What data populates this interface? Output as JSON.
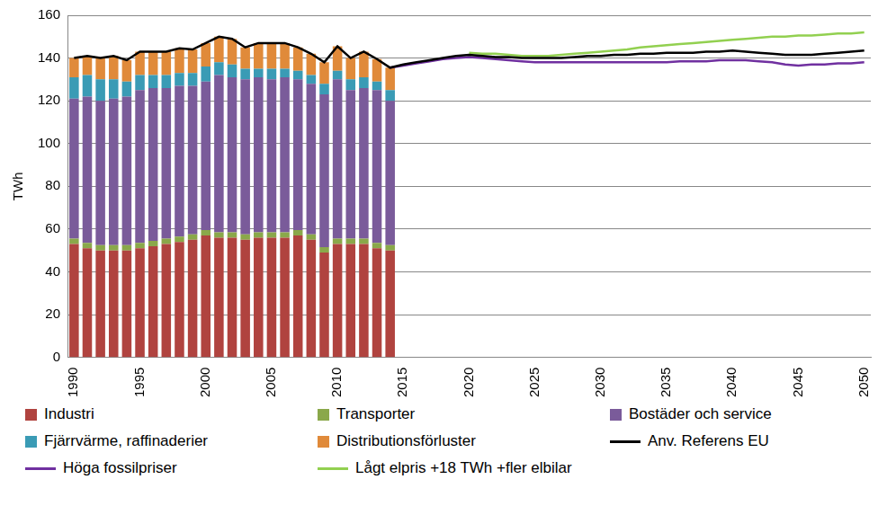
{
  "chart_data": {
    "type": "bar",
    "y_label": "TWh",
    "stacked": true,
    "grid": true,
    "ylim": [
      0,
      160
    ],
    "yticks": [
      0,
      20,
      40,
      60,
      80,
      100,
      120,
      140,
      160
    ],
    "categories": [
      "1990",
      null,
      null,
      null,
      null,
      "1995",
      null,
      null,
      null,
      null,
      "2000",
      null,
      null,
      null,
      null,
      "2005",
      null,
      null,
      null,
      null,
      "2010",
      null,
      null,
      null,
      null,
      "2015",
      null,
      null,
      null,
      null,
      "2020",
      null,
      null,
      null,
      null,
      "2025",
      null,
      null,
      null,
      null,
      "2030",
      null,
      null,
      null,
      null,
      "2035",
      null,
      null,
      null,
      null,
      "2040",
      null,
      null,
      null,
      null,
      "2045",
      null,
      null,
      null,
      null,
      "2050"
    ],
    "series": [
      {
        "name": "Industri",
        "type": "bar",
        "color": "#b0433f",
        "values": [
          53,
          51,
          50,
          50,
          50,
          51,
          52,
          53,
          54,
          55,
          57,
          56,
          56,
          55,
          56,
          56,
          56,
          57,
          55,
          49,
          53,
          53,
          53,
          51,
          50,
          null,
          null,
          null,
          null,
          null,
          null,
          null,
          null,
          null,
          null,
          null,
          null,
          null,
          null,
          null,
          null,
          null,
          null,
          null,
          null,
          null,
          null,
          null,
          null,
          null,
          null,
          null,
          null,
          null,
          null,
          null,
          null,
          null,
          null,
          null,
          null
        ]
      },
      {
        "name": "Transporter",
        "type": "bar",
        "color": "#8aa84a",
        "values": [
          2.5,
          2.5,
          2.5,
          2.5,
          2.5,
          2.5,
          2.5,
          2.5,
          2.5,
          2.5,
          2.5,
          2.5,
          2.5,
          2.5,
          2.5,
          2.5,
          2.5,
          2.5,
          2.5,
          2.5,
          2.5,
          2.5,
          2.5,
          2.5,
          2.5,
          null,
          null,
          null,
          null,
          null,
          null,
          null,
          null,
          null,
          null,
          null,
          null,
          null,
          null,
          null,
          null,
          null,
          null,
          null,
          null,
          null,
          null,
          null,
          null,
          null,
          null,
          null,
          null,
          null,
          null,
          null,
          null,
          null,
          null,
          null,
          null
        ]
      },
      {
        "name": "Bostäder och service",
        "type": "bar",
        "color": "#7a5b9a",
        "values": [
          65.5,
          68.5,
          67.5,
          68.5,
          69.5,
          71.5,
          71.5,
          70.5,
          70.5,
          69.5,
          69.5,
          73.5,
          72.5,
          72.5,
          72.5,
          71.5,
          72.5,
          70.5,
          70.5,
          71.5,
          74.5,
          69.5,
          70.5,
          71.5,
          67.5,
          null,
          null,
          null,
          null,
          null,
          null,
          null,
          null,
          null,
          null,
          null,
          null,
          null,
          null,
          null,
          null,
          null,
          null,
          null,
          null,
          null,
          null,
          null,
          null,
          null,
          null,
          null,
          null,
          null,
          null,
          null,
          null,
          null,
          null,
          null,
          null
        ]
      },
      {
        "name": "Fjärrvärme, raffinaderier",
        "type": "bar",
        "color": "#3a9bb5",
        "values": [
          10,
          10,
          10,
          9,
          7,
          7,
          6,
          6,
          6,
          6,
          7,
          6,
          6,
          5,
          4,
          5,
          4,
          4,
          4,
          5,
          4,
          5,
          5,
          4,
          5,
          null,
          null,
          null,
          null,
          null,
          null,
          null,
          null,
          null,
          null,
          null,
          null,
          null,
          null,
          null,
          null,
          null,
          null,
          null,
          null,
          null,
          null,
          null,
          null,
          null,
          null,
          null,
          null,
          null,
          null,
          null,
          null,
          null,
          null,
          null,
          null
        ]
      },
      {
        "name": "Distributionsförluster",
        "type": "bar",
        "color": "#e08a3a",
        "values": [
          9,
          9,
          10,
          11,
          10,
          11,
          11,
          11,
          11.5,
          11,
          11,
          12,
          12,
          10,
          12,
          12,
          12,
          11,
          10,
          10,
          11.5,
          10,
          12,
          10.5,
          10.5,
          null,
          null,
          null,
          null,
          null,
          null,
          null,
          null,
          null,
          null,
          null,
          null,
          null,
          null,
          null,
          null,
          null,
          null,
          null,
          null,
          null,
          null,
          null,
          null,
          null,
          null,
          null,
          null,
          null,
          null,
          null,
          null,
          null,
          null,
          null,
          null
        ]
      },
      {
        "name": "Anv. Referens EU",
        "type": "line",
        "color": "#000000",
        "values": [
          140,
          141,
          140,
          141,
          139,
          143,
          143,
          143,
          144.5,
          144,
          147,
          150,
          149,
          145,
          147,
          147,
          147,
          145,
          142,
          138,
          145.5,
          140,
          143,
          139.5,
          135.5,
          137,
          138,
          139,
          140,
          141,
          141.5,
          141,
          140.5,
          140.5,
          140,
          140,
          140,
          140,
          140.5,
          141,
          141,
          141.5,
          141.5,
          142,
          142,
          142.5,
          142.5,
          142.5,
          143,
          143,
          143.5,
          143,
          142.5,
          142,
          141.5,
          141.5,
          141.5,
          142,
          142.5,
          143,
          143.5
        ]
      },
      {
        "name": "Höga fossilpriser",
        "type": "line",
        "color": "#7030a0",
        "values": [
          null,
          null,
          null,
          null,
          null,
          null,
          null,
          null,
          null,
          null,
          null,
          null,
          null,
          null,
          null,
          null,
          null,
          null,
          null,
          null,
          null,
          null,
          null,
          null,
          135.5,
          136.5,
          137.5,
          138.5,
          139.5,
          140,
          140.5,
          140,
          139.5,
          139,
          138.5,
          138,
          138,
          138,
          138,
          138,
          138,
          138,
          138,
          138,
          138,
          138,
          138.5,
          138.5,
          138.5,
          139,
          139,
          139,
          138.5,
          138,
          137,
          136.5,
          137,
          137,
          137.5,
          137.5,
          138
        ]
      },
      {
        "name": "Lågt elpris +18 TWh +fler elbilar",
        "type": "line",
        "color": "#92d050",
        "values": [
          null,
          null,
          null,
          null,
          null,
          null,
          null,
          null,
          null,
          null,
          null,
          null,
          null,
          null,
          null,
          null,
          null,
          null,
          null,
          null,
          null,
          null,
          null,
          null,
          null,
          null,
          null,
          null,
          null,
          null,
          142.5,
          142,
          142,
          141.5,
          141,
          141,
          141,
          141.5,
          142,
          142.5,
          143,
          143.5,
          144,
          145,
          145.5,
          146,
          146.5,
          147,
          147.5,
          148,
          148.5,
          149,
          149.5,
          150,
          150,
          150.5,
          150.5,
          151,
          151.5,
          151.5,
          152
        ]
      }
    ]
  }
}
